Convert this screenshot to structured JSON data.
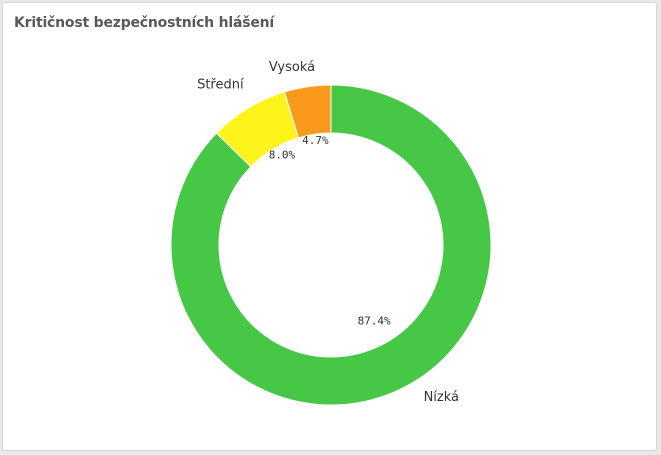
{
  "chart_data": {
    "type": "pie",
    "title": "Kritičnost bezpečnostních hlášení",
    "categories": [
      "Nízká",
      "Střední",
      "Vysoká"
    ],
    "values": [
      87.4,
      8.0,
      4.7
    ],
    "value_labels": [
      "87.4%",
      "8.0%",
      "4.7%"
    ],
    "colors": [
      "#46c746",
      "#fff31c",
      "#f99a1d"
    ],
    "donut": true
  }
}
